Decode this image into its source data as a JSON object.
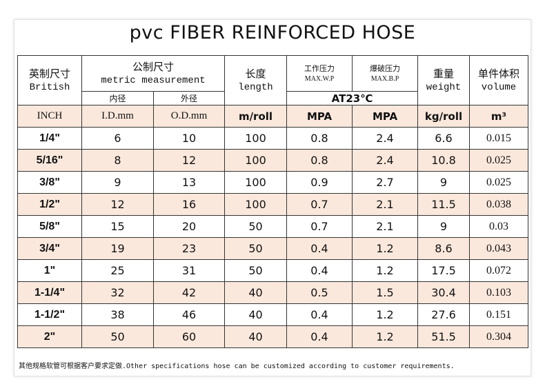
{
  "title": "pvc FIBER REINFORCED HOSE",
  "header": {
    "british": {
      "zh": "英制尺寸",
      "en": "British"
    },
    "metric": {
      "zh": "公制尺寸",
      "en": "metric measurement",
      "id": "内径",
      "od": "外径"
    },
    "length": {
      "zh": "长度",
      "en": "length"
    },
    "work_pressure": {
      "zh": "工作压力",
      "en": "MAX.W.P"
    },
    "burst_pressure": {
      "zh": "爆破压力",
      "en": "MAX.B.P"
    },
    "condition": "AT23℃",
    "weight": {
      "zh": "重量",
      "en": "weight"
    },
    "volume": {
      "zh": "单件体积",
      "en": "volume"
    }
  },
  "units": [
    "INCH",
    "I.D.mm",
    "O.D.mm",
    "m/roll",
    "MPA",
    "MPA",
    "kg/roll",
    "m³"
  ],
  "rows": [
    [
      "1/4\"",
      6,
      10,
      100,
      0.8,
      2.4,
      6.6,
      0.015
    ],
    [
      "5/16\"",
      8,
      12,
      100,
      0.8,
      2.4,
      10.8,
      0.025
    ],
    [
      "3/8\"",
      9,
      13,
      100,
      0.9,
      2.7,
      9,
      0.025
    ],
    [
      "1/2\"",
      12,
      16,
      100,
      0.7,
      2.1,
      11.5,
      0.038
    ],
    [
      "5/8\"",
      15,
      20,
      50,
      0.7,
      2.1,
      9,
      0.03
    ],
    [
      "3/4\"",
      19,
      23,
      50,
      0.4,
      1.2,
      8.6,
      0.043
    ],
    [
      "1\"",
      25,
      31,
      50,
      0.4,
      1.2,
      17.5,
      0.072
    ],
    [
      "1-1/4\"",
      32,
      42,
      40,
      0.5,
      1.5,
      30.4,
      0.103
    ],
    [
      "1-1/2\"",
      38,
      46,
      40,
      0.4,
      1.2,
      27.6,
      0.151
    ],
    [
      "2\"",
      50,
      60,
      40,
      0.4,
      1.2,
      51.5,
      0.304
    ]
  ],
  "footnote": "其他规格软管可根据客户要求定做.Other specifications hose can be customized according to customer requirements."
}
